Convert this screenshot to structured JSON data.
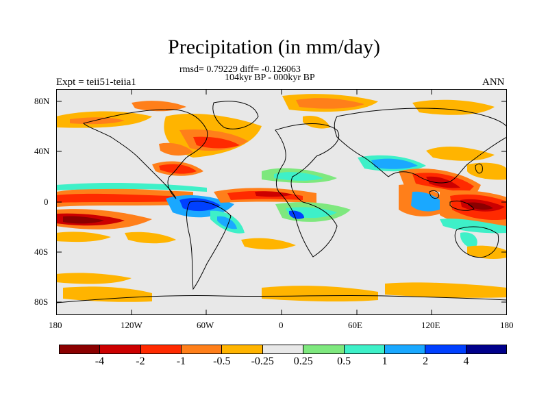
{
  "title": "Precipitation (in mm/day)",
  "stats": "rmsd= 0.79229 diff= -0.126063",
  "subtitle": "104kyr BP - 000kyr BP",
  "expt": "Expt = teii51-teiia1",
  "season": "ANN",
  "lat_ticks": [
    "80N",
    "40N",
    "0",
    "40S",
    "80S"
  ],
  "lon_ticks": [
    "180",
    "120W",
    "60W",
    "0",
    "60E",
    "120E",
    "180"
  ],
  "colorbar": {
    "labels": [
      "-4",
      "-2",
      "-1",
      "-0.5",
      "-0.25",
      "0.25",
      "0.5",
      "1",
      "2",
      "4"
    ],
    "colors": [
      "#8b0000",
      "#cc0000",
      "#ff2a00",
      "#ff7f1a",
      "#ffb400",
      "#e8e8e8",
      "#7ee87e",
      "#3ef0c8",
      "#1aa8ff",
      "#0040ff",
      "#00008b"
    ]
  },
  "colors": {
    "background": "#e8e8e8",
    "coast": "#000000"
  }
}
